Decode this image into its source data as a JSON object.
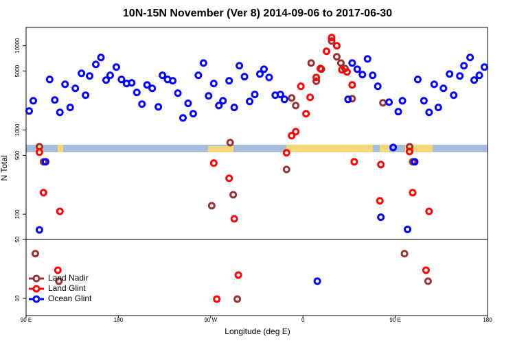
{
  "chart_data": {
    "type": "scatter",
    "title": "10N-15N November (Ver 8)   2014-09-06 to 2017-06-30",
    "xlabel": "Longitude (deg E)",
    "ylabel": "N Total",
    "xlim": [
      90,
      540
    ],
    "xticks": [
      {
        "value": 90,
        "label": "90 E"
      },
      {
        "value": 180,
        "label": "180"
      },
      {
        "value": 270,
        "label": "90 W"
      },
      {
        "value": 360,
        "label": "0"
      },
      {
        "value": 450,
        "label": "90 E"
      },
      {
        "value": 540,
        "label": "180"
      }
    ],
    "ylim": [
      6.25,
      16500
    ],
    "yticks": [
      10,
      50,
      100,
      500,
      1000,
      5000,
      10000
    ],
    "log_y": true,
    "legend": "lower left",
    "series": [
      {
        "name": "Land Nadir",
        "color": "#993333",
        "x": [
          103,
          107,
          99,
          122,
          271,
          289,
          292,
          296,
          344,
          349,
          353,
          368,
          373,
          378,
          388,
          393,
          397,
          401,
          408,
          438,
          459,
          464,
          467,
          482
        ],
        "values": [
          632,
          419,
          34,
          16,
          126,
          708,
          170,
          9.8,
          340,
          2400,
          1950,
          6240,
          3790,
          5270,
          11400,
          7400,
          6240,
          5370,
          2350,
          2100,
          34,
          632,
          419,
          16
        ]
      },
      {
        "name": "Land Glint",
        "color": "#ff0000",
        "x": [
          103,
          107,
          123,
          121,
          273,
          288,
          293,
          297,
          276,
          344,
          349,
          353,
          358,
          363,
          367,
          373,
          377,
          383,
          388,
          393,
          398,
          403,
          408,
          410,
          436,
          435,
          464,
          467,
          483,
          480
        ],
        "values": [
          545,
          180,
          108,
          21.6,
          404,
          267,
          88,
          18.9,
          9.8,
          535,
          855,
          956,
          3300,
          1560,
          2440,
          4210,
          5370,
          8590,
          12500,
          10000,
          5180,
          4890,
          3430,
          419,
          388,
          144,
          555,
          180,
          108,
          21.6
        ]
      },
      {
        "name": "Ocean Glint",
        "color": "#0000ff",
        "x": [
          93,
          97,
          103,
          109,
          113,
          118,
          123,
          128,
          133,
          138,
          144,
          148,
          152,
          158,
          163,
          168,
          172,
          178,
          183,
          188,
          193,
          198,
          203,
          208,
          213,
          219,
          223,
          228,
          233,
          238,
          243,
          248,
          253,
          258,
          263,
          268,
          273,
          278,
          282,
          288,
          293,
          298,
          303,
          308,
          313,
          318,
          322,
          327,
          333,
          338,
          342,
          374,
          404,
          408,
          413,
          418,
          423,
          428,
          433,
          436,
          444,
          448,
          453,
          457,
          462,
          469,
          472,
          478,
          483,
          488,
          492,
          497,
          503,
          507,
          513,
          517,
          523,
          527,
          532,
          537
        ],
        "values": [
          1680,
          2220,
          65,
          419,
          3980,
          2270,
          1620,
          3490,
          1850,
          3120,
          4710,
          2590,
          4380,
          6010,
          7260,
          3910,
          4460,
          5580,
          3980,
          3560,
          3630,
          2790,
          2030,
          3430,
          3120,
          1880,
          4460,
          3980,
          3840,
          2740,
          1390,
          2070,
          1560,
          4460,
          6240,
          2540,
          3560,
          1950,
          2220,
          3840,
          1850,
          5790,
          4290,
          2180,
          2640,
          4620,
          5270,
          4210,
          2590,
          2640,
          2310,
          16,
          2310,
          6240,
          5270,
          4540,
          6980,
          4460,
          3300,
          92,
          2140,
          620,
          1650,
          2220,
          66,
          419,
          3980,
          2220,
          1620,
          3490,
          1850,
          3120,
          4620,
          2590,
          4380,
          5790,
          7260,
          3910,
          4460,
          5580
        ]
      }
    ]
  }
}
